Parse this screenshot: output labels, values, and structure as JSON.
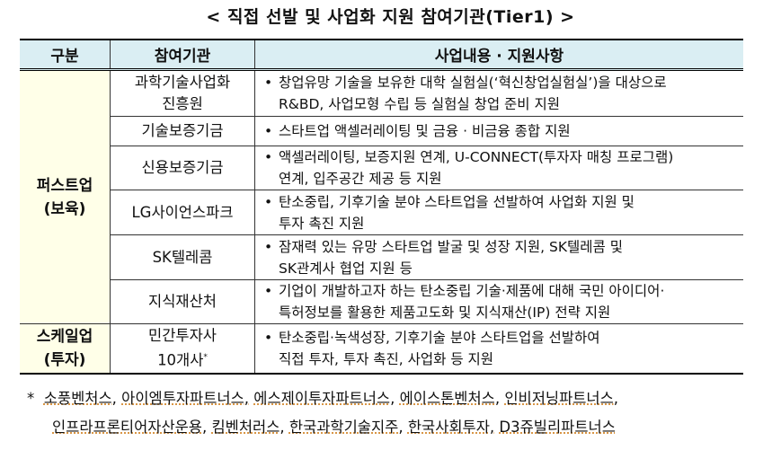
{
  "title": "< 직접 선발 및 사업화 지원 참여기관(Tier1) >",
  "table": {
    "headers": [
      "구분",
      "참여기관",
      "사업내용 · 지원사항"
    ],
    "groups": [
      {
        "label_1": "퍼스트업",
        "label_2": "(보육)"
      },
      {
        "label_1": "스케일업",
        "label_2": "(투자)"
      }
    ],
    "rows": [
      {
        "org_1": "과학기술사업화",
        "org_2": "진흥원",
        "desc_1": "창업유망 기술을 보유한 대학 실험실(‘혁신창업실험실’)을 대상으로",
        "desc_2": "R&BD, 사업모형 수립 등 실험실 창업 준비 지원"
      },
      {
        "org_1": "기술보증기금",
        "desc_1": "스타트업 액셀러레이팅 및 금융 · 비금융 종합 지원"
      },
      {
        "org_1": "신용보증기금",
        "desc_1": "액셀러레이팅, 보증지원 연계, U-CONNECT(투자자 매칭 프로그램)",
        "desc_2": "연계, 입주공간 제공 등 지원"
      },
      {
        "org_1": "LG사이언스파크",
        "desc_1": "탄소중립, 기후기술 분야 스타트업을 선발하여 사업화 지원 및",
        "desc_2": "투자 촉진 지원"
      },
      {
        "org_1": "SK텔레콤",
        "desc_1": "잠재력 있는 유망 스타트업 발굴 및 성장 지원, SK텔레콤 및",
        "desc_2": "SK관계사 협업 지원 등"
      },
      {
        "org_1": "지식재산처",
        "desc_1": "기업이 개발하고자 하는 탄소중립 기술·제품에 대해 국민 아이디어·",
        "desc_2": "특허정보를 활용한 제품고도화 및 지식재산(IP) 전략 지원"
      },
      {
        "org_1": "민간투자사",
        "org_2": "10개사",
        "org_sup": "*",
        "desc_1": "탄소중립·녹색성장, 기후기술 분야 스타트업을 선발하여",
        "desc_2": "직접 투자, 투자 촉진, 사업화 등 지원"
      }
    ],
    "bullet": "•"
  },
  "footnote": {
    "mark": "*",
    "line_1": [
      "소풍벤처스,",
      "아이엠투자파트너스,",
      "에스제이투자파트너스,",
      "에이스톤벤처스,",
      "인비저닝파트너스,"
    ],
    "line_2": [
      "인프라프론티어자산운용,",
      "킴벤처러스,",
      "한국과학기술지주,",
      "한국사회투자,",
      "D3쥬빌리파트너스"
    ]
  },
  "colors": {
    "header_bg": "#DAEEF3",
    "group_bg": "#FFFFE8"
  }
}
